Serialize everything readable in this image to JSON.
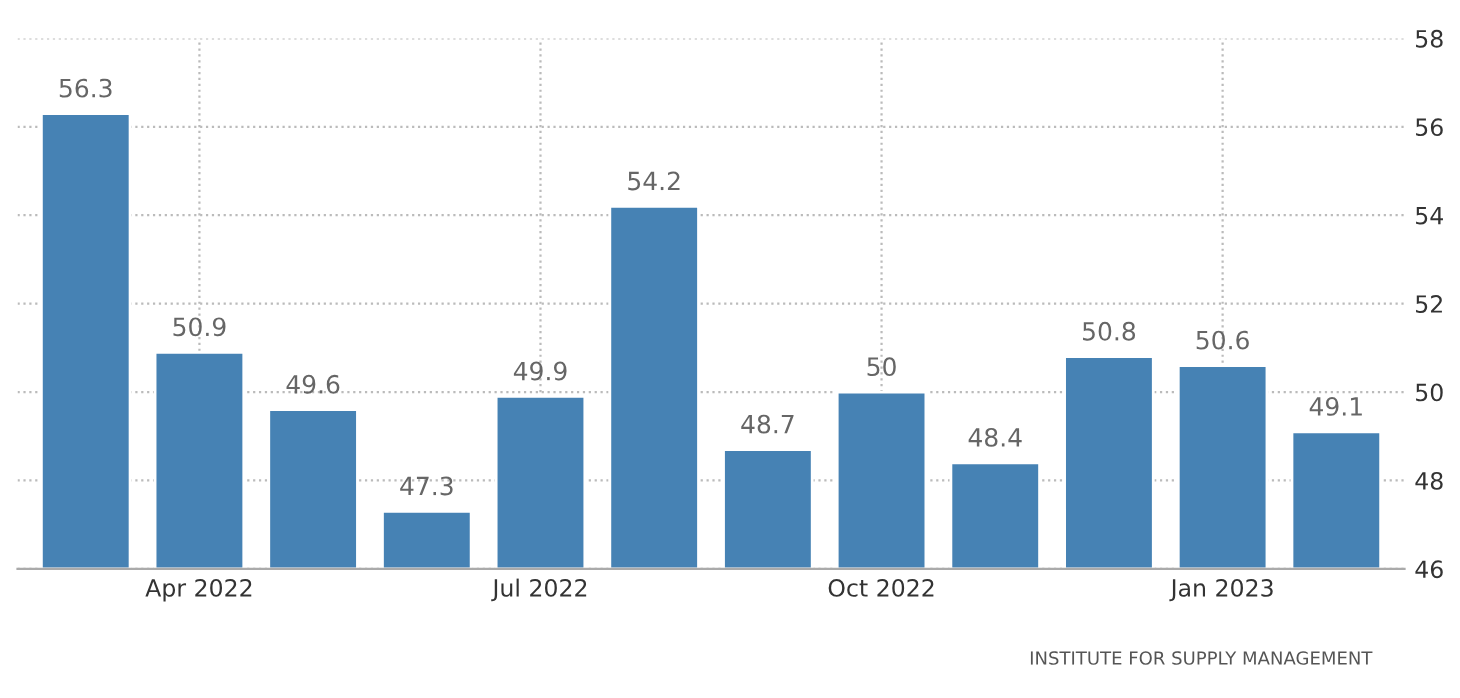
{
  "chart_data": {
    "type": "bar",
    "categories": [
      null,
      "Apr 2022",
      null,
      null,
      "Jul 2022",
      null,
      null,
      "Oct 2022",
      null,
      null,
      "Jan 2023",
      null
    ],
    "values": [
      56.3,
      50.9,
      49.6,
      47.3,
      49.9,
      54.2,
      48.7,
      50,
      48.4,
      50.8,
      50.6,
      49.1
    ],
    "color": "#4682b4",
    "ylim": [
      46,
      58
    ],
    "yticks": [
      46,
      48,
      50,
      52,
      54,
      56,
      58
    ],
    "grid": true,
    "data_labels": true,
    "annotations": [
      "INSTITUTE FOR SUPPLY MANAGEMENT"
    ]
  }
}
